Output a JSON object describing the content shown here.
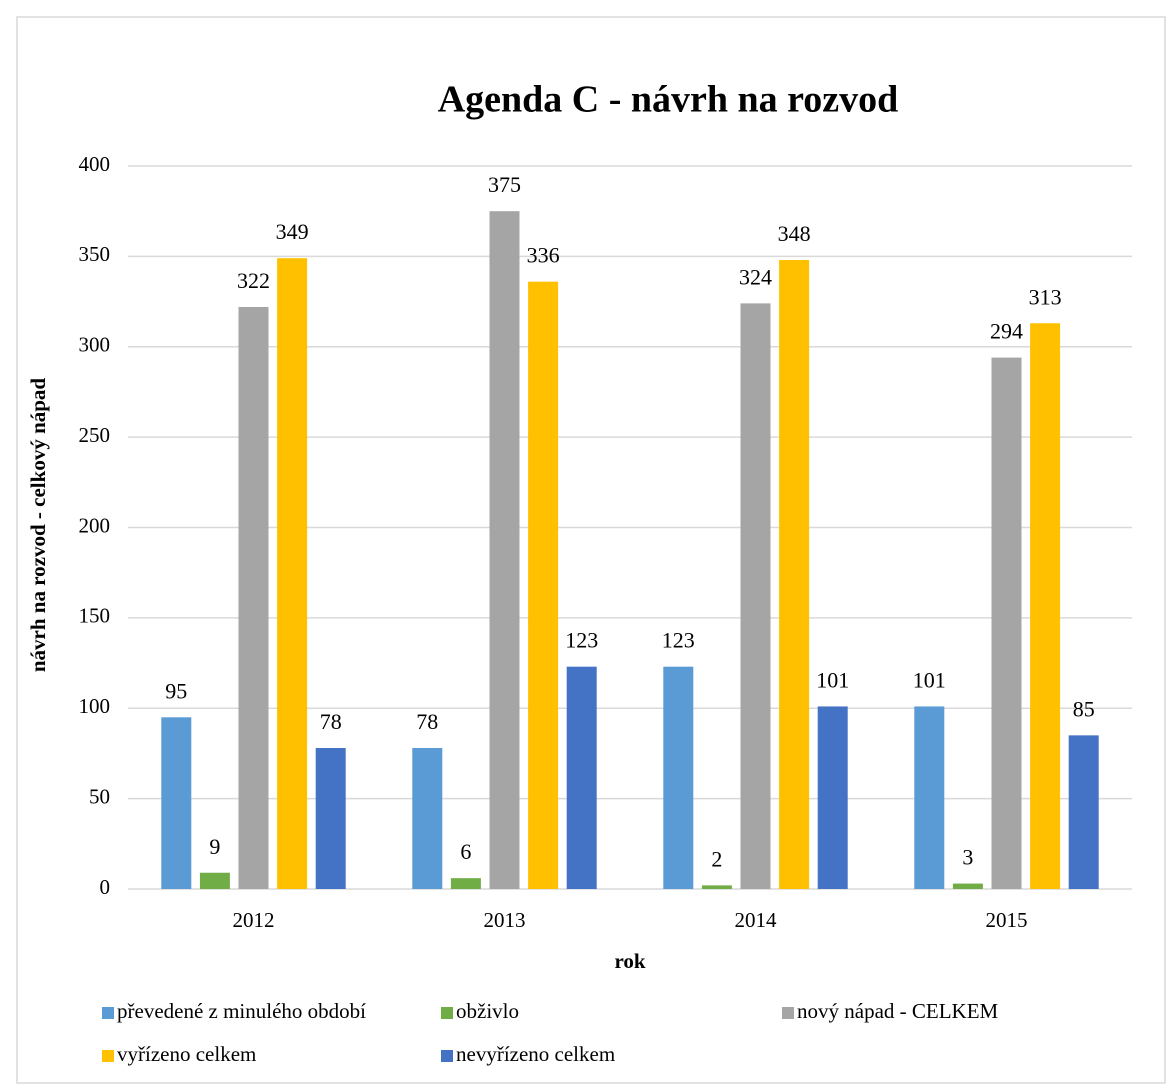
{
  "chart_data": {
    "type": "bar",
    "title": "Agenda C - návrh na rozvod",
    "x_label": "rok",
    "y_label": "návrh na rozvod - celkový nápad",
    "categories": [
      "2012",
      "2013",
      "2014",
      "2015"
    ],
    "series": [
      {
        "name": "převedené z minulého období",
        "color": "#5b9bd5",
        "values": [
          95,
          78,
          123,
          101
        ]
      },
      {
        "name": "obživlo",
        "color": "#70ad47",
        "values": [
          9,
          6,
          2,
          3
        ]
      },
      {
        "name": "nový nápad - CELKEM",
        "color": "#a5a5a5",
        "values": [
          322,
          375,
          324,
          294
        ]
      },
      {
        "name": "vyřízeno celkem",
        "color": "#ffc000",
        "values": [
          349,
          336,
          348,
          313
        ]
      },
      {
        "name": "nevyřízeno celkem",
        "color": "#4472c4",
        "values": [
          78,
          123,
          101,
          85
        ]
      }
    ],
    "ylim": [
      0,
      400
    ],
    "yticks": [
      0,
      50,
      100,
      150,
      200,
      250,
      300,
      350,
      400
    ],
    "grid": true,
    "legend": "bottom"
  }
}
